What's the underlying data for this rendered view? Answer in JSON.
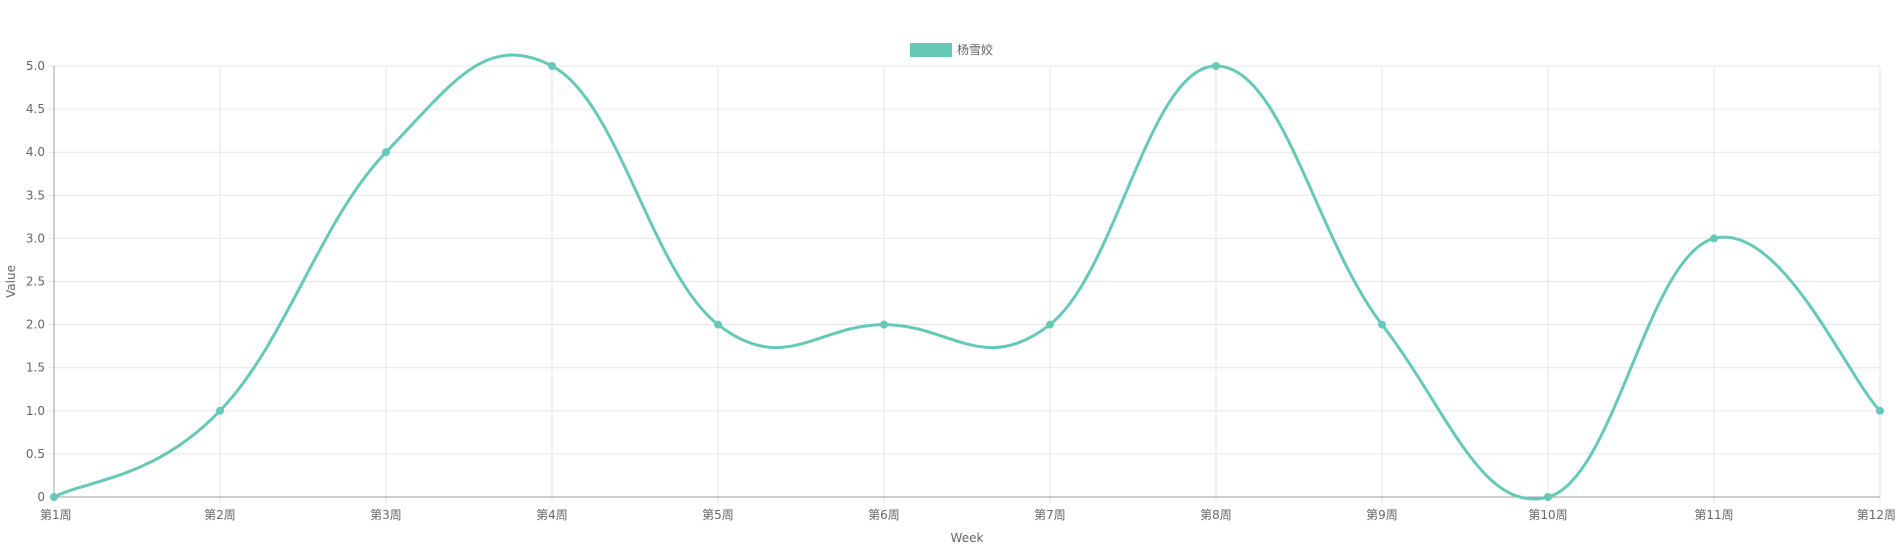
{
  "chart_data": {
    "type": "line",
    "categories": [
      "第1周",
      "第2周",
      "第3周",
      "第4周",
      "第5周",
      "第6周",
      "第7周",
      "第8周",
      "第9周",
      "第10周",
      "第11周",
      "第12周"
    ],
    "series": [
      {
        "name": "杨雪姣",
        "values": [
          0,
          1,
          4,
          5,
          2,
          2,
          2,
          5,
          2,
          0,
          3,
          1
        ],
        "color": "#66c9b8"
      }
    ],
    "xlabel": "Week",
    "ylabel": "Value",
    "ylim": [
      0,
      5
    ],
    "yticks": [
      "0",
      "0.5",
      "1.0",
      "1.5",
      "2.0",
      "2.5",
      "3.0",
      "3.5",
      "4.0",
      "4.5",
      "5.0"
    ],
    "ytick_values": [
      0,
      0.5,
      1,
      1.5,
      2,
      2.5,
      3,
      3.5,
      4,
      4.5,
      5
    ],
    "grid": true,
    "smooth": true,
    "legend_position": "top-center",
    "colors": {
      "grid": "#e6e6e6",
      "axis": "#9e9e9e",
      "text": "#666666"
    }
  }
}
